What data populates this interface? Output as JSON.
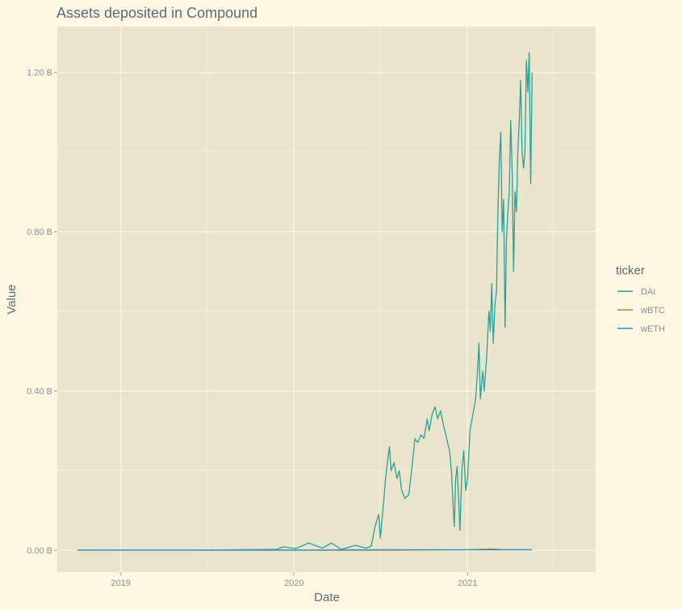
{
  "chart_data": {
    "type": "line",
    "title": "Assets deposited in Compound",
    "xlabel": "Date",
    "ylabel": "Value",
    "x_ticks": [
      "2019",
      "2020",
      "2021"
    ],
    "y_ticks": [
      "0.00 B",
      "0.40 B",
      "0.80 B",
      "1.20 B"
    ],
    "xlim": [
      "2018-08-20",
      "2021-09-28"
    ],
    "ylim": [
      -0.055,
      1.315
    ],
    "legend": {
      "title": "ticker",
      "position": "right"
    },
    "colors": {
      "DAI": "#2aa198",
      "wBTC": "#b58900",
      "wETH": "#268bd2"
    },
    "grid": true,
    "series": [
      {
        "name": "DAI",
        "points": [
          [
            "2018-10-01",
            0.0
          ],
          [
            "2019-06-01",
            0.0
          ],
          [
            "2019-11-25",
            0.002
          ],
          [
            "2019-12-10",
            0.008
          ],
          [
            "2020-01-05",
            0.004
          ],
          [
            "2020-02-01",
            0.018
          ],
          [
            "2020-03-01",
            0.005
          ],
          [
            "2020-03-20",
            0.018
          ],
          [
            "2020-04-10",
            0.002
          ],
          [
            "2020-05-10",
            0.012
          ],
          [
            "2020-06-01",
            0.005
          ],
          [
            "2020-06-12",
            0.01
          ],
          [
            "2020-06-20",
            0.06
          ],
          [
            "2020-06-28",
            0.09
          ],
          [
            "2020-07-01",
            0.03
          ],
          [
            "2020-07-08",
            0.12
          ],
          [
            "2020-07-12",
            0.18
          ],
          [
            "2020-07-16",
            0.22
          ],
          [
            "2020-07-20",
            0.26
          ],
          [
            "2020-07-24",
            0.2
          ],
          [
            "2020-07-30",
            0.22
          ],
          [
            "2020-08-05",
            0.18
          ],
          [
            "2020-08-10",
            0.2
          ],
          [
            "2020-08-15",
            0.15
          ],
          [
            "2020-08-22",
            0.13
          ],
          [
            "2020-08-30",
            0.14
          ],
          [
            "2020-09-05",
            0.2
          ],
          [
            "2020-09-12",
            0.28
          ],
          [
            "2020-09-18",
            0.27
          ],
          [
            "2020-09-25",
            0.29
          ],
          [
            "2020-10-01",
            0.28
          ],
          [
            "2020-10-08",
            0.33
          ],
          [
            "2020-10-12",
            0.3
          ],
          [
            "2020-10-18",
            0.34
          ],
          [
            "2020-10-24",
            0.36
          ],
          [
            "2020-10-30",
            0.33
          ],
          [
            "2020-11-05",
            0.35
          ],
          [
            "2020-11-12",
            0.31
          ],
          [
            "2020-11-18",
            0.28
          ],
          [
            "2020-11-24",
            0.25
          ],
          [
            "2020-11-28",
            0.2
          ],
          [
            "2020-12-02",
            0.1
          ],
          [
            "2020-12-04",
            0.06
          ],
          [
            "2020-12-07",
            0.18
          ],
          [
            "2020-12-10",
            0.21
          ],
          [
            "2020-12-13",
            0.13
          ],
          [
            "2020-12-16",
            0.05
          ],
          [
            "2020-12-20",
            0.2
          ],
          [
            "2020-12-24",
            0.25
          ],
          [
            "2020-12-28",
            0.15
          ],
          [
            "2021-01-01",
            0.18
          ],
          [
            "2021-01-06",
            0.3
          ],
          [
            "2021-01-12",
            0.34
          ],
          [
            "2021-01-18",
            0.38
          ],
          [
            "2021-01-22",
            0.45
          ],
          [
            "2021-01-25",
            0.52
          ],
          [
            "2021-01-28",
            0.38
          ],
          [
            "2021-02-02",
            0.45
          ],
          [
            "2021-02-05",
            0.4
          ],
          [
            "2021-02-10",
            0.48
          ],
          [
            "2021-02-15",
            0.6
          ],
          [
            "2021-02-18",
            0.55
          ],
          [
            "2021-02-21",
            0.67
          ],
          [
            "2021-02-24",
            0.52
          ],
          [
            "2021-02-28",
            0.62
          ],
          [
            "2021-03-03",
            0.65
          ],
          [
            "2021-03-06",
            0.85
          ],
          [
            "2021-03-09",
            0.98
          ],
          [
            "2021-03-12",
            1.05
          ],
          [
            "2021-03-15",
            0.8
          ],
          [
            "2021-03-18",
            0.88
          ],
          [
            "2021-03-21",
            0.56
          ],
          [
            "2021-03-24",
            0.78
          ],
          [
            "2021-03-27",
            0.85
          ],
          [
            "2021-03-30",
            0.9
          ],
          [
            "2021-04-02",
            1.08
          ],
          [
            "2021-04-05",
            0.95
          ],
          [
            "2021-04-08",
            0.7
          ],
          [
            "2021-04-11",
            0.9
          ],
          [
            "2021-04-14",
            0.85
          ],
          [
            "2021-04-17",
            1.0
          ],
          [
            "2021-04-20",
            1.08
          ],
          [
            "2021-04-23",
            1.18
          ],
          [
            "2021-04-26",
            1.0
          ],
          [
            "2021-04-29",
            0.96
          ],
          [
            "2021-05-02",
            1.0
          ],
          [
            "2021-05-05",
            1.23
          ],
          [
            "2021-05-08",
            1.15
          ],
          [
            "2021-05-11",
            1.25
          ],
          [
            "2021-05-14",
            0.92
          ],
          [
            "2021-05-17",
            1.2
          ]
        ]
      },
      {
        "name": "wBTC",
        "points": [
          [
            "2018-10-01",
            0.0
          ],
          [
            "2020-06-01",
            0.0
          ],
          [
            "2021-01-01",
            0.001
          ],
          [
            "2021-02-20",
            0.003
          ],
          [
            "2021-03-20",
            0.001
          ],
          [
            "2021-05-17",
            0.001
          ]
        ]
      },
      {
        "name": "wETH",
        "points": [
          [
            "2018-10-01",
            0.0
          ],
          [
            "2019-10-01",
            0.0
          ],
          [
            "2020-06-01",
            0.001
          ],
          [
            "2021-01-01",
            0.001
          ],
          [
            "2021-05-17",
            0.001
          ]
        ]
      }
    ]
  }
}
